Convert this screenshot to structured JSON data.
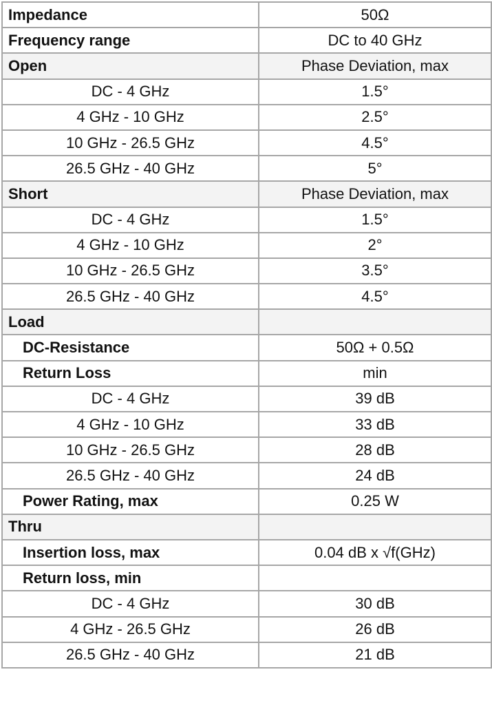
{
  "table": {
    "rows": [
      {
        "label": "Impedance",
        "value": "50Ω",
        "style": "bold",
        "section": false
      },
      {
        "label": "Frequency range",
        "value": "DC to 40 GHz",
        "style": "bold",
        "section": false
      },
      {
        "label": "Open",
        "value": "Phase Deviation, max",
        "style": "bold",
        "section": true
      },
      {
        "label": "DC - 4 GHz",
        "value": "1.5°",
        "style": "center",
        "section": false
      },
      {
        "label": "4 GHz - 10 GHz",
        "value": "2.5°",
        "style": "center",
        "section": false
      },
      {
        "label": "10 GHz - 26.5 GHz",
        "value": "4.5°",
        "style": "center",
        "section": false
      },
      {
        "label": "26.5 GHz - 40 GHz",
        "value": "5°",
        "style": "center",
        "section": false
      },
      {
        "label": "Short",
        "value": "Phase Deviation, max",
        "style": "bold",
        "section": true
      },
      {
        "label": "DC - 4 GHz",
        "value": "1.5°",
        "style": "center",
        "section": false
      },
      {
        "label": "4 GHz - 10 GHz",
        "value": "2°",
        "style": "center",
        "section": false
      },
      {
        "label": "10 GHz - 26.5 GHz",
        "value": "3.5°",
        "style": "center",
        "section": false
      },
      {
        "label": "26.5 GHz - 40 GHz",
        "value": "4.5°",
        "style": "center",
        "section": false
      },
      {
        "label": "Load",
        "value": "",
        "style": "bold",
        "section": true
      },
      {
        "label": "DC-Resistance",
        "value": "50Ω + 0.5Ω",
        "style": "indent",
        "section": false
      },
      {
        "label": "Return Loss",
        "value": "min",
        "style": "indent",
        "section": false
      },
      {
        "label": "DC - 4 GHz",
        "value": "39 dB",
        "style": "center",
        "section": false
      },
      {
        "label": "4 GHz - 10 GHz",
        "value": "33 dB",
        "style": "center",
        "section": false
      },
      {
        "label": "10 GHz - 26.5 GHz",
        "value": "28 dB",
        "style": "center",
        "section": false
      },
      {
        "label": "26.5 GHz - 40 GHz",
        "value": "24 dB",
        "style": "center",
        "section": false
      },
      {
        "label": "Power Rating, max",
        "value": "0.25 W",
        "style": "indent",
        "section": false
      },
      {
        "label": "Thru",
        "value": "",
        "style": "bold",
        "section": true
      },
      {
        "label": "Insertion loss, max",
        "value": "0.04 dB x √f(GHz)",
        "style": "indent",
        "section": false
      },
      {
        "label": "Return loss, min",
        "value": "",
        "style": "indent",
        "section": false
      },
      {
        "label": "DC - 4 GHz",
        "value": "30 dB",
        "style": "center",
        "section": false
      },
      {
        "label": "4 GHz - 26.5 GHz",
        "value": "26 dB",
        "style": "center",
        "section": false
      },
      {
        "label": "26.5 GHz - 40 GHz",
        "value": "21 dB",
        "style": "center",
        "section": false
      }
    ]
  }
}
